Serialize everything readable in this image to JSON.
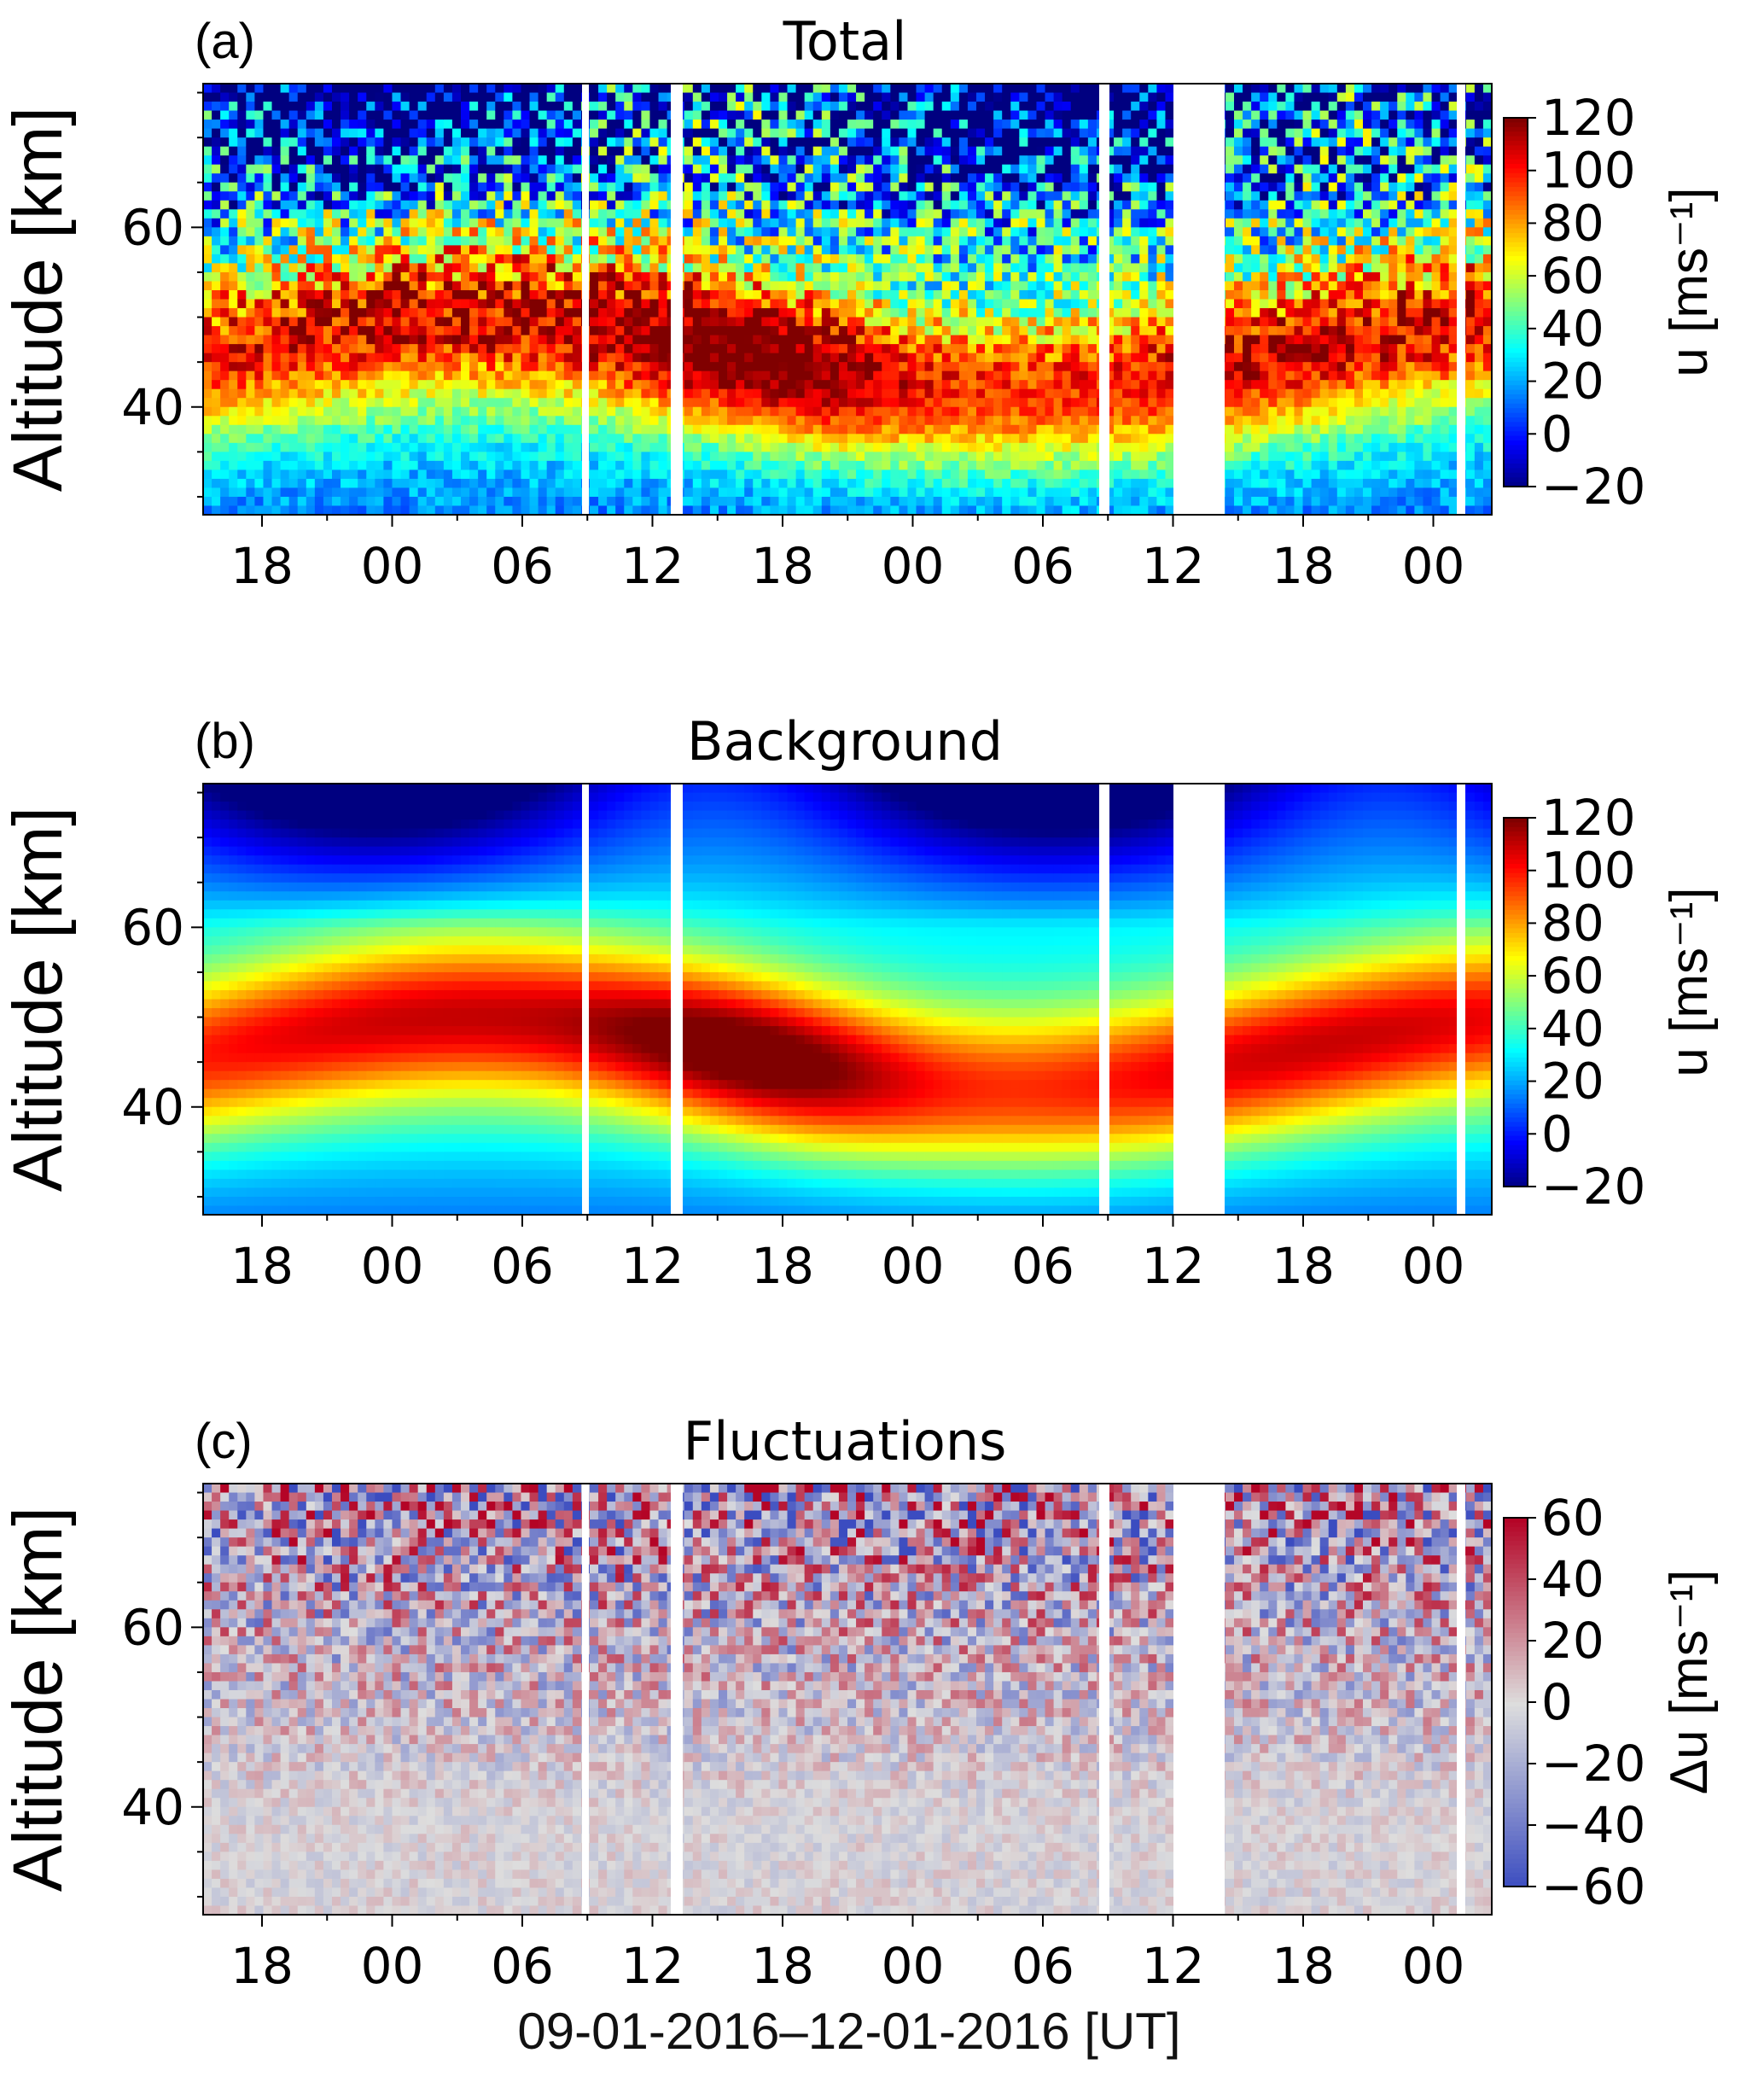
{
  "figure": {
    "xlabel": "09-01-2016–12-01-2016 [UT]"
  },
  "chart_data": [
    {
      "type": "heatmap",
      "panel_label": "(a)",
      "title": "Total",
      "ylabel": "Altitude [km]",
      "yticks": [
        40,
        60
      ],
      "ylim": [
        28,
        76
      ],
      "xticks": [
        "18",
        "00",
        "06",
        "12",
        "18",
        "00",
        "06",
        "12",
        "18",
        "00"
      ],
      "colorbar": {
        "label": "u [ms⁻¹]",
        "ticks": [
          "120",
          "100",
          "80",
          "60",
          "40",
          "20",
          "0",
          "−20"
        ],
        "range": [
          -20,
          120
        ],
        "colormap": "jet"
      },
      "description": "Zonal wind, noisy field; strong eastward jet (80–120 ms⁻¹) near 42–55 km, negative winds above ~65 km, weaker winds below 38 km; data gaps as white vertical bands."
    },
    {
      "type": "heatmap",
      "panel_label": "(b)",
      "title": "Background",
      "ylabel": "Altitude [km]",
      "yticks": [
        40,
        60
      ],
      "ylim": [
        28,
        76
      ],
      "xticks": [
        "18",
        "00",
        "06",
        "12",
        "18",
        "00",
        "06",
        "12",
        "18",
        "00"
      ],
      "colorbar": {
        "label": "u [ms⁻¹]",
        "ticks": [
          "120",
          "100",
          "80",
          "60",
          "40",
          "20",
          "0",
          "−20"
        ],
        "range": [
          -20,
          120
        ],
        "colormap": "jet"
      },
      "description": "Smoothed background zonal wind; maximum ~110 ms⁻¹ near 45 km around 16 UT of second day, easterly/weak winds above 65 km."
    },
    {
      "type": "heatmap",
      "panel_label": "(c)",
      "title": "Fluctuations",
      "ylabel": "Altitude [km]",
      "yticks": [
        40,
        60
      ],
      "ylim": [
        28,
        76
      ],
      "xticks": [
        "18",
        "00",
        "06",
        "12",
        "18",
        "00",
        "06",
        "12",
        "18",
        "00"
      ],
      "colorbar": {
        "label": "Δu [ms⁻¹]",
        "ticks": [
          "60",
          "40",
          "20",
          "0",
          "−20",
          "−40",
          "−60"
        ],
        "range": [
          -60,
          60
        ],
        "colormap": "coolwarm"
      },
      "description": "Wind perturbations; amplitudes grow with altitude, exceeding ±60 ms⁻¹ above ~65 km."
    }
  ]
}
